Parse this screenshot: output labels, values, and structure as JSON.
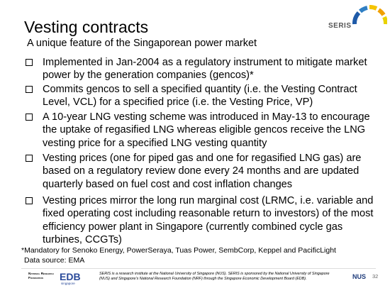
{
  "header": {
    "title": "Vesting contracts",
    "subtitle": "A unique feature of the Singaporean power market",
    "logo": "SERIS"
  },
  "bullets": [
    "Implemented in Jan-2004 as a regulatory instrument to mitigate market power by the generation companies (gencos)*",
    "Commits gencos to sell a specified quantity (i.e. the Vesting Contract Level, VCL) for a specified price (i.e. the Vesting Price, VP)",
    "A 10-year LNG vesting scheme was introduced in May-13 to encourage the uptake of regasified LNG whereas eligible gencos receive the LNG vesting price for a specified LNG vesting quantity",
    "Vesting prices (one for piped gas and one for regasified LNG gas) are based on a regulatory review done every 24 months and are updated quarterly based on fuel cost and cost inflation changes",
    "Vesting prices mirror the long run marginal cost (LRMC, i.e. variable and fixed operating cost including reasonable return to investors) of the most efficiency power plant in Singapore (currently combined cycle gas turbines, CCGTs)"
  ],
  "footnote": "*Mandatory for Senoko Energy, PowerSeraya, Tuas Power, SembCorp, Keppel and PacificLight",
  "source": "Data source: EMA",
  "footer": {
    "nrf": "National Research Foundation",
    "edb": "EDB",
    "edb_sub": "singapore",
    "text": "SERIS is a research institute at the National University of Singapore (NUS). SERIS is sponsored by the National University of Singapore (NUS) and Singapore's National Research Foundation (NRF) through the Singapore Economic Development Board (EDB).",
    "nus": "NUS",
    "page": "32"
  }
}
